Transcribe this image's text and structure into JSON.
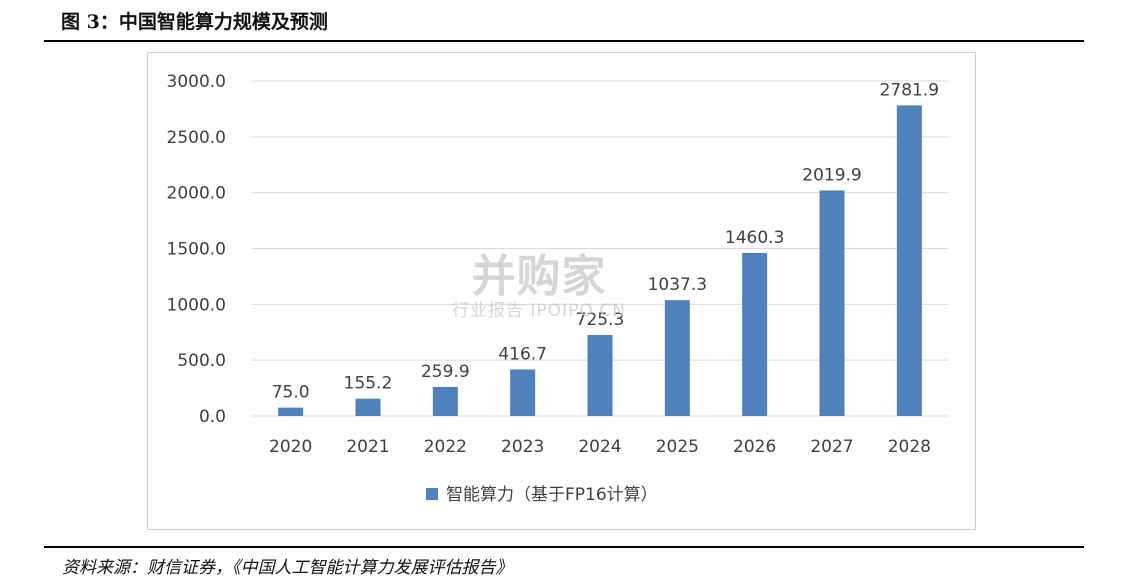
{
  "figure": {
    "title": "图 3：中国智能算力规模及预测",
    "source": "资料来源：财信证券，《中国人工智能计算力发展评估报告》"
  },
  "watermark": {
    "main": "并购家",
    "sub": "行业报告 IPOIPO.CN"
  },
  "colors": {
    "bar": "#4f81bd",
    "gridline": "#d9d9d9",
    "text": "#404040"
  },
  "chart_data": {
    "type": "bar",
    "categories": [
      "2020",
      "2021",
      "2022",
      "2023",
      "2024",
      "2025",
      "2026",
      "2027",
      "2028"
    ],
    "series": [
      {
        "name": "智能算力（基于FP16计算）",
        "values": [
          75.0,
          155.2,
          259.9,
          416.7,
          725.3,
          1037.3,
          1460.3,
          2019.9,
          2781.9
        ]
      }
    ],
    "data_labels": [
      "75.0",
      "155.2",
      "259.9",
      "416.7",
      "725.3",
      "1037.3",
      "1460.3",
      "2019.9",
      "2781.9"
    ],
    "yticks": [
      "0.0",
      "500.0",
      "1000.0",
      "1500.0",
      "2000.0",
      "2500.0",
      "3000.0"
    ],
    "ylim": [
      0,
      3000
    ],
    "grid": true,
    "legend_position": "bottom",
    "title": "",
    "xlabel": "",
    "ylabel": ""
  }
}
